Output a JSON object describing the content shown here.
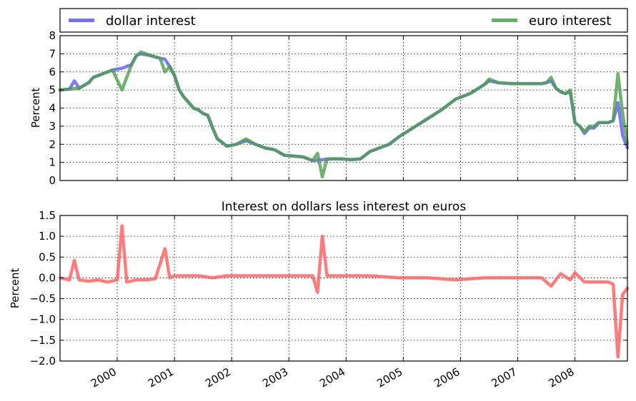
{
  "legend": {
    "placement": "top, above upper panel, full width",
    "items": [
      {
        "label": "dollar interest",
        "color": "#5b5bf0"
      },
      {
        "label": "euro interest",
        "color": "#4f9e4f"
      }
    ]
  },
  "chart_data": [
    {
      "type": "line",
      "title": "",
      "xlabel": "",
      "ylabel": "Percent",
      "ylim": [
        0,
        8
      ],
      "yticks": [
        "0",
        "1",
        "2",
        "3",
        "4",
        "5",
        "6",
        "7",
        "8"
      ],
      "xlim": [
        "1999-01",
        "2008-12"
      ],
      "xticks": [
        "2000",
        "2001",
        "2002",
        "2003",
        "2004",
        "2005",
        "2006",
        "2007",
        "2008"
      ],
      "grid": true,
      "series": [
        {
          "name": "dollar interest",
          "color": "#5b5bf0",
          "x": [
            "1999-01",
            "1999-03",
            "1999-04",
            "1999-05",
            "1999-07",
            "1999-08",
            "1999-10",
            "1999-12",
            "2000-02",
            "2000-04",
            "2000-05",
            "2000-06",
            "2000-08",
            "2000-10",
            "2000-11",
            "2000-12",
            "2001-01",
            "2001-02",
            "2001-03",
            "2001-04",
            "2001-05",
            "2001-06",
            "2001-07",
            "2001-08",
            "2001-09",
            "2001-10",
            "2001-11",
            "2001-12",
            "2002-02",
            "2002-04",
            "2002-06",
            "2002-08",
            "2002-10",
            "2002-12",
            "2003-02",
            "2003-04",
            "2003-06",
            "2003-08",
            "2003-10",
            "2003-12",
            "2004-02",
            "2004-04",
            "2004-06",
            "2004-08",
            "2004-10",
            "2004-12",
            "2005-03",
            "2005-06",
            "2005-09",
            "2005-12",
            "2006-03",
            "2006-06",
            "2006-07",
            "2006-09",
            "2006-12",
            "2007-03",
            "2007-06",
            "2007-07",
            "2007-08",
            "2007-09",
            "2007-10",
            "2007-11",
            "2007-12",
            "2008-01",
            "2008-02",
            "2008-03",
            "2008-04",
            "2008-05",
            "2008-06",
            "2008-07",
            "2008-08",
            "2008-09",
            "2008-10",
            "2008-11",
            "2008-12"
          ],
          "values": [
            5.0,
            5.05,
            5.5,
            5.1,
            5.4,
            5.7,
            5.9,
            6.1,
            6.2,
            6.4,
            6.9,
            7.0,
            6.9,
            6.75,
            6.7,
            6.3,
            5.8,
            5.0,
            4.6,
            4.3,
            4.0,
            3.9,
            3.7,
            3.6,
            2.9,
            2.3,
            2.1,
            1.9,
            2.0,
            2.2,
            2.0,
            1.8,
            1.7,
            1.4,
            1.35,
            1.3,
            1.1,
            1.15,
            1.2,
            1.2,
            1.15,
            1.2,
            1.6,
            1.8,
            2.0,
            2.4,
            2.9,
            3.4,
            3.9,
            4.5,
            4.8,
            5.3,
            5.5,
            5.4,
            5.35,
            5.35,
            5.35,
            5.4,
            5.5,
            5.1,
            4.9,
            4.8,
            4.9,
            3.2,
            3.0,
            2.6,
            2.9,
            2.9,
            3.2,
            3.2,
            3.2,
            3.3,
            4.3,
            2.5,
            1.8
          ]
        },
        {
          "name": "euro interest",
          "color": "#4f9e4f",
          "x": [
            "1999-01",
            "1999-03",
            "1999-05",
            "1999-07",
            "1999-08",
            "1999-10",
            "1999-12",
            "2000-02",
            "2000-04",
            "2000-05",
            "2000-06",
            "2000-08",
            "2000-10",
            "2000-11",
            "2000-12",
            "2001-01",
            "2001-02",
            "2001-03",
            "2001-04",
            "2001-05",
            "2001-06",
            "2001-07",
            "2001-08",
            "2001-09",
            "2001-10",
            "2001-11",
            "2001-12",
            "2002-02",
            "2002-04",
            "2002-06",
            "2002-08",
            "2002-10",
            "2002-12",
            "2003-02",
            "2003-04",
            "2003-06",
            "2003-07",
            "2003-08",
            "2003-09",
            "2003-10",
            "2003-12",
            "2004-02",
            "2004-04",
            "2004-06",
            "2004-08",
            "2004-10",
            "2004-12",
            "2005-03",
            "2005-06",
            "2005-09",
            "2005-12",
            "2006-03",
            "2006-06",
            "2006-07",
            "2006-09",
            "2006-12",
            "2007-03",
            "2007-06",
            "2007-07",
            "2007-08",
            "2007-09",
            "2007-10",
            "2007-11",
            "2007-12",
            "2008-01",
            "2008-02",
            "2008-03",
            "2008-04",
            "2008-05",
            "2008-06",
            "2008-07",
            "2008-08",
            "2008-09",
            "2008-10",
            "2008-11",
            "2008-12"
          ],
          "values": [
            5.0,
            5.05,
            5.1,
            5.4,
            5.7,
            5.9,
            6.1,
            5.0,
            6.4,
            6.9,
            7.1,
            6.9,
            6.75,
            6.0,
            6.3,
            5.8,
            5.0,
            4.6,
            4.3,
            4.0,
            3.9,
            3.7,
            3.6,
            2.9,
            2.3,
            2.1,
            1.9,
            2.0,
            2.3,
            2.0,
            1.8,
            1.7,
            1.4,
            1.35,
            1.3,
            1.1,
            1.5,
            0.2,
            1.2,
            1.2,
            1.2,
            1.15,
            1.2,
            1.6,
            1.8,
            2.0,
            2.4,
            2.9,
            3.4,
            3.9,
            4.5,
            4.8,
            5.3,
            5.6,
            5.4,
            5.35,
            5.35,
            5.35,
            5.4,
            5.7,
            5.1,
            4.9,
            4.8,
            5.0,
            3.2,
            3.0,
            2.7,
            3.0,
            3.0,
            3.2,
            3.2,
            3.2,
            3.3,
            5.9,
            3.7,
            2.0
          ]
        }
      ]
    },
    {
      "type": "line",
      "title": "Interest on dollars less interest on euros",
      "xlabel": "",
      "ylabel": "Percent",
      "ylim": [
        -2.0,
        1.5
      ],
      "yticks": [
        "−2.0",
        "−1.5",
        "−1.0",
        "−0.5",
        "0.0",
        "0.5",
        "1.0",
        "1.5"
      ],
      "xlim": [
        "1999-01",
        "2008-12"
      ],
      "xticks": [
        "2000",
        "2001",
        "2002",
        "2003",
        "2004",
        "2005",
        "2006",
        "2007",
        "2008"
      ],
      "grid": true,
      "series": [
        {
          "color": "#ff5c5c",
          "x": [
            "1999-01",
            "1999-03",
            "1999-04",
            "1999-05",
            "1999-07",
            "1999-09",
            "1999-11",
            "2000-01",
            "2000-02",
            "2000-03",
            "2000-05",
            "2000-07",
            "2000-09",
            "2000-11",
            "2000-12",
            "2001-01",
            "2001-03",
            "2001-06",
            "2001-09",
            "2001-12",
            "2002-03",
            "2002-06",
            "2002-09",
            "2002-12",
            "2003-03",
            "2003-06",
            "2003-07",
            "2003-08",
            "2003-09",
            "2003-10",
            "2004-01",
            "2004-06",
            "2004-12",
            "2005-06",
            "2005-12",
            "2006-06",
            "2006-12",
            "2007-06",
            "2007-08",
            "2007-09",
            "2007-10",
            "2007-12",
            "2008-01",
            "2008-03",
            "2008-06",
            "2008-08",
            "2008-09",
            "2008-10",
            "2008-11",
            "2008-12"
          ],
          "values": [
            0.0,
            -0.05,
            0.42,
            -0.05,
            -0.08,
            -0.05,
            -0.1,
            -0.05,
            1.25,
            -0.1,
            -0.05,
            -0.05,
            -0.02,
            0.7,
            0.0,
            0.05,
            0.05,
            0.05,
            0.0,
            0.05,
            0.05,
            0.05,
            0.05,
            0.05,
            0.05,
            0.05,
            -0.35,
            1.0,
            0.05,
            0.05,
            0.05,
            0.05,
            0.0,
            0.0,
            -0.05,
            0.0,
            0.0,
            0.0,
            -0.2,
            -0.05,
            0.1,
            -0.05,
            0.12,
            -0.1,
            -0.1,
            -0.1,
            -0.15,
            -1.9,
            -0.4,
            -0.25
          ]
        }
      ]
    }
  ]
}
